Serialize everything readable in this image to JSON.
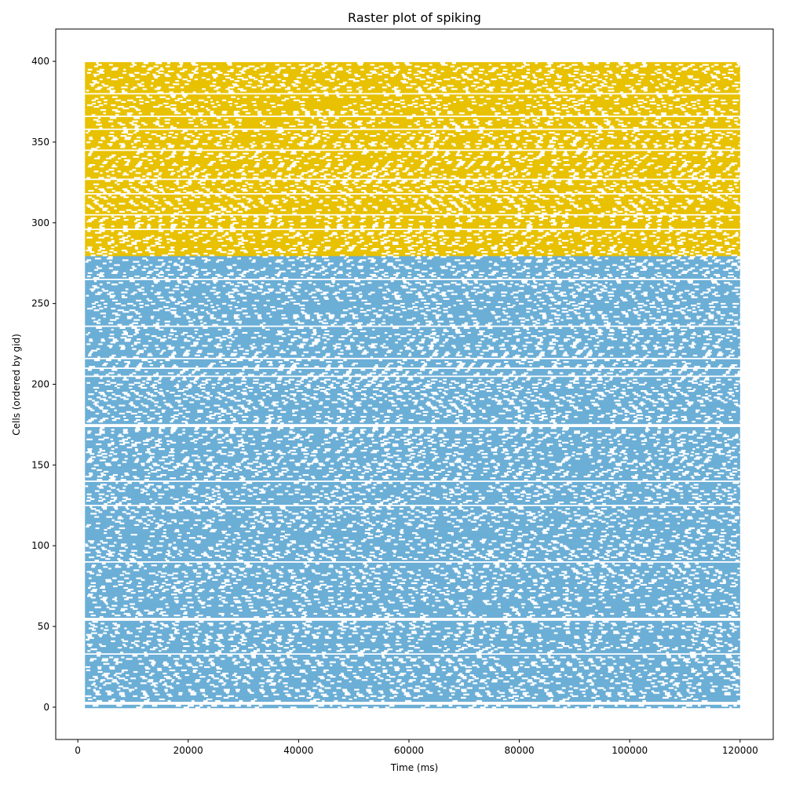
{
  "chart_data": {
    "type": "scatter",
    "title": "Raster plot of spiking",
    "xlabel": "Time (ms)",
    "ylabel": "Cells (ordered by gid)",
    "xlim": [
      -4000,
      126000
    ],
    "ylim": [
      -20,
      420
    ],
    "x_ticks": [
      0,
      20000,
      40000,
      60000,
      80000,
      100000,
      120000
    ],
    "y_ticks": [
      0,
      50,
      100,
      150,
      200,
      250,
      300,
      350,
      400
    ],
    "x_tick_labels": [
      "0",
      "20000",
      "40000",
      "60000",
      "80000",
      "100000",
      "120000"
    ],
    "y_tick_labels": [
      "0",
      "50",
      "100",
      "150",
      "200",
      "250",
      "300",
      "350",
      "400"
    ],
    "grid": false,
    "legend": "none",
    "time_range": [
      1300,
      120000
    ],
    "series": [
      {
        "cells": [
          0,
          279
        ],
        "color": "#6baed6"
      },
      {
        "cells": [
          280,
          399
        ],
        "color": "#e8c100"
      }
    ],
    "approx_burst_period_ms": 2150,
    "silent_gaps_cells": [
      2,
      3,
      33,
      54,
      55,
      90,
      125,
      140,
      174,
      175,
      205,
      210,
      216,
      236,
      265,
      296,
      305,
      318,
      327,
      345,
      358,
      366,
      380
    ]
  }
}
